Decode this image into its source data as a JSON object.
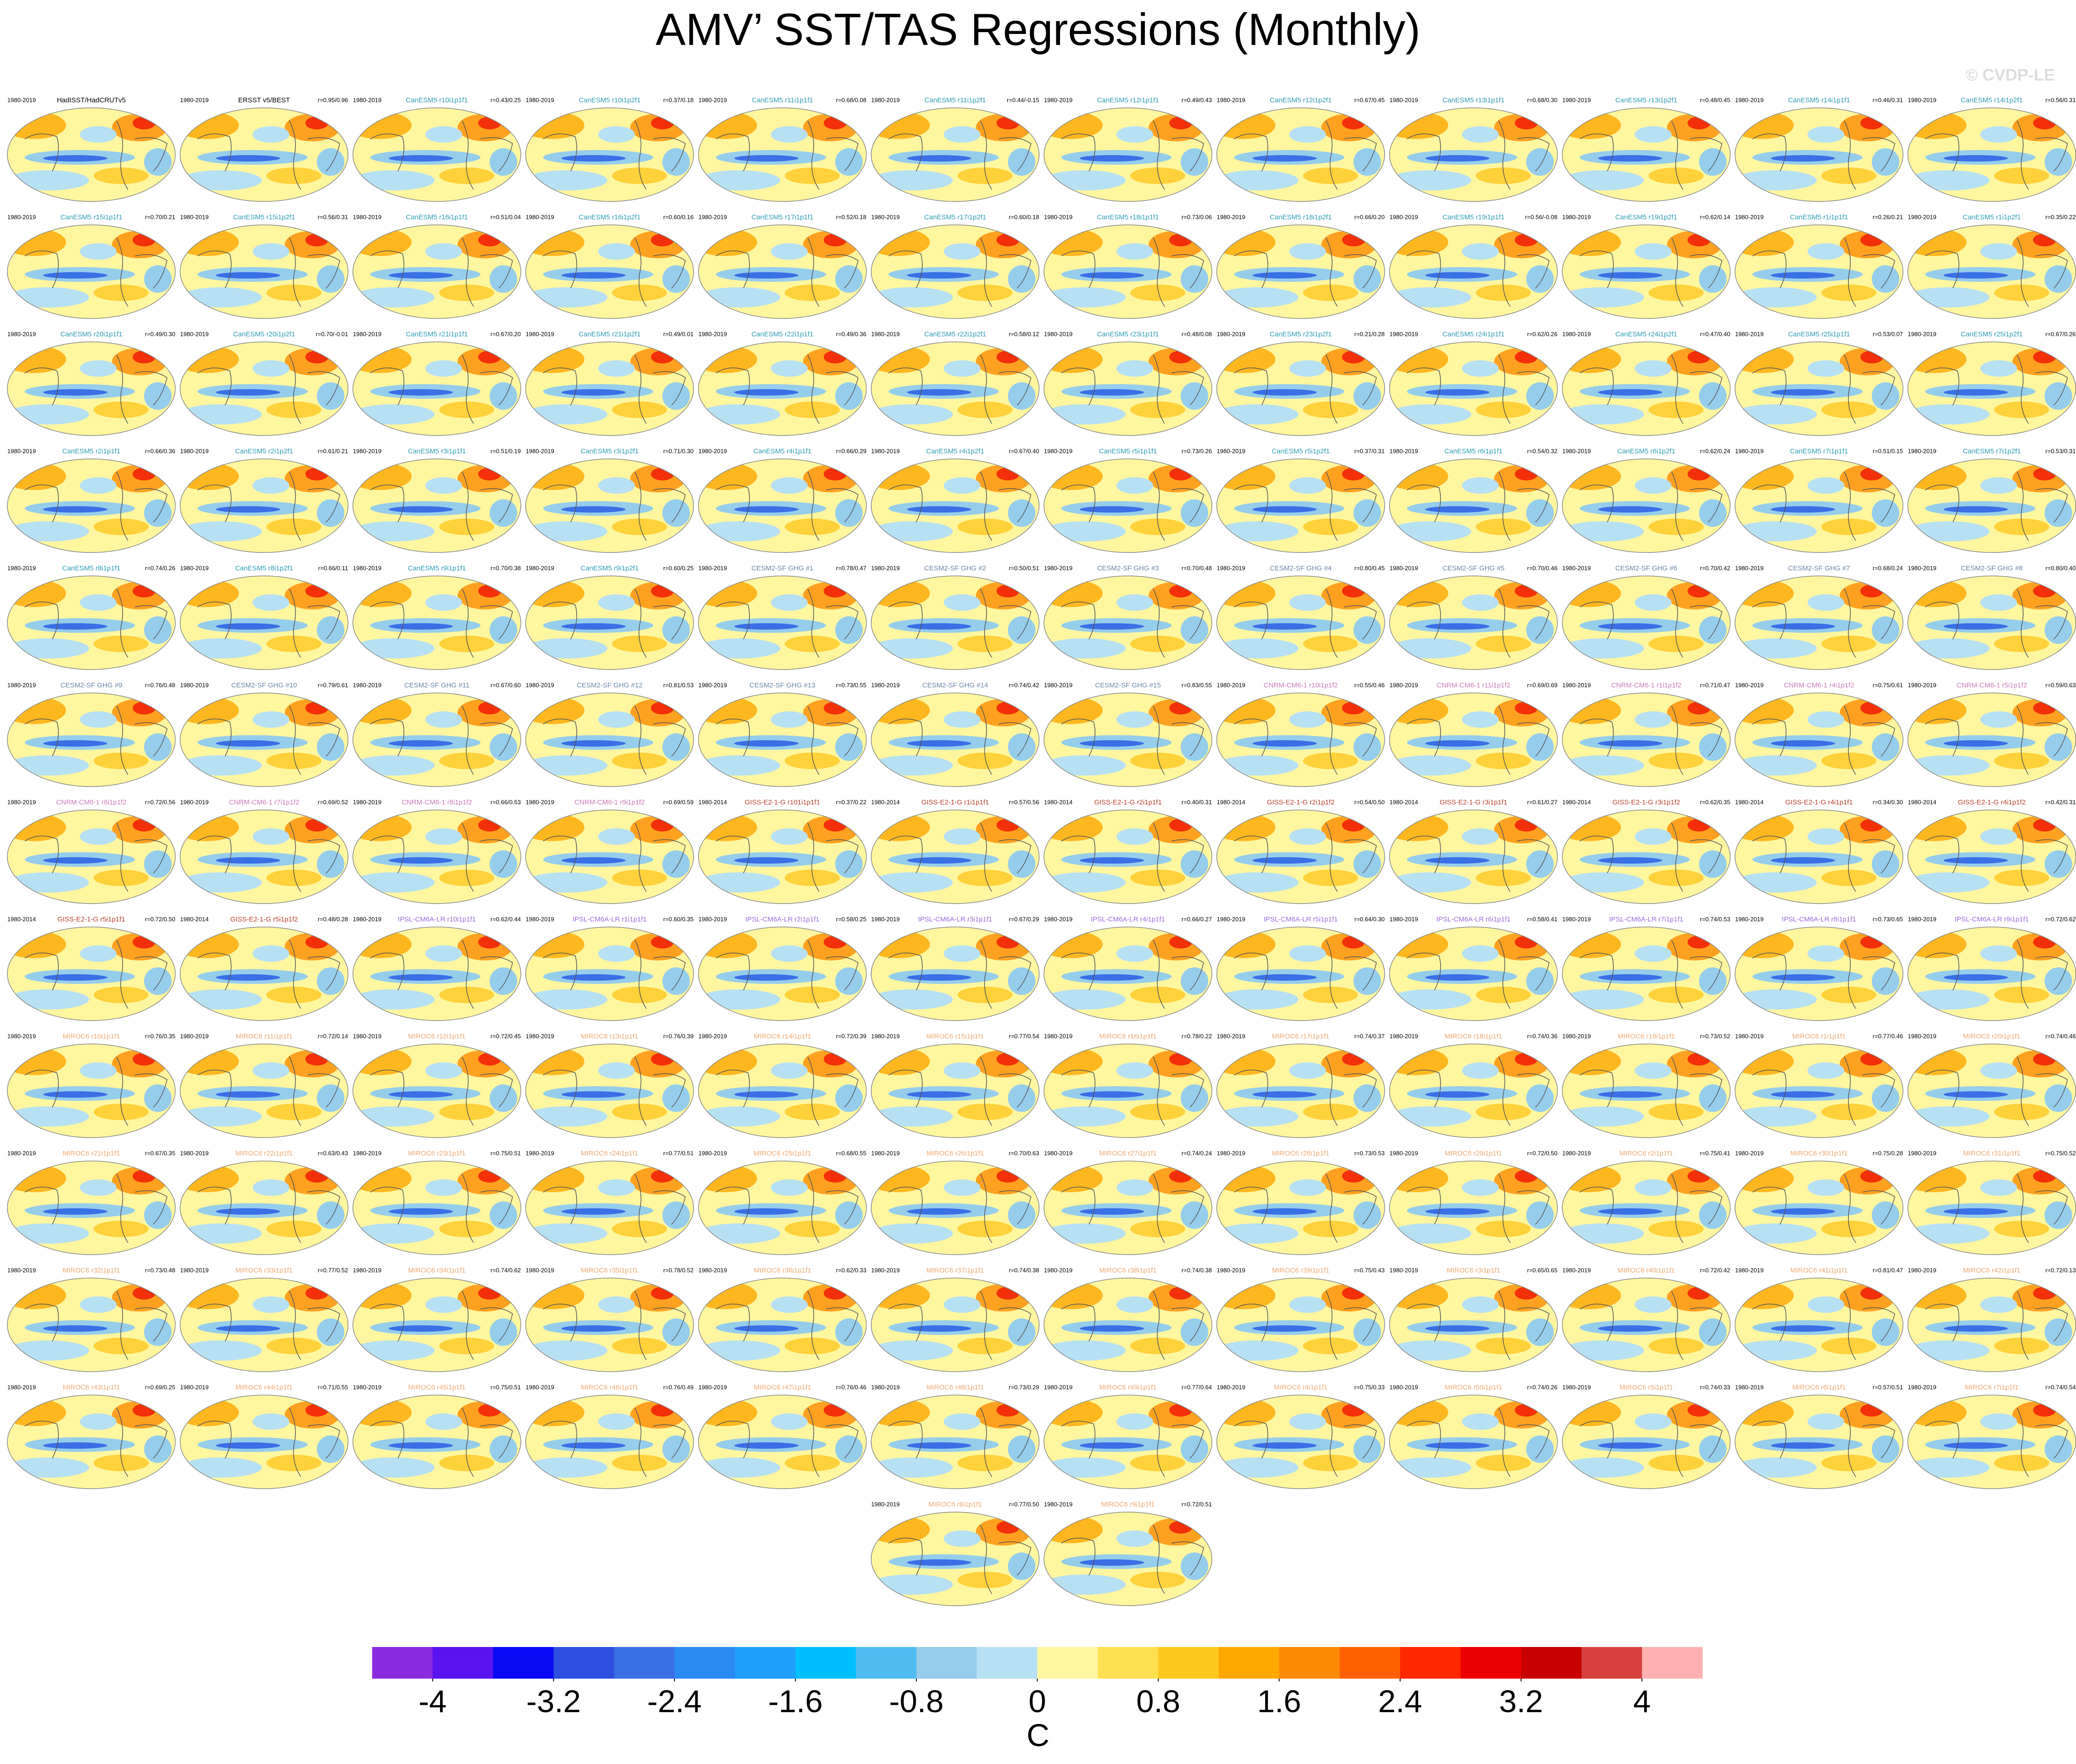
{
  "title": "AMV’ SST/TAS Regressions (Monthly)",
  "credit": "© CVDP-LE",
  "panels": [
    {
      "years": "1980-2019",
      "title": "HadISST/HadCRUTv5",
      "color": "#000000"
    },
    {
      "years": "1980-2019",
      "title": "ERSST v5/BEST",
      "r": "r=0.95/0.96",
      "color": "#000000"
    },
    {
      "years": "1980-2019",
      "title": "CanESM5 r10i1p1f1",
      "r": "r=0.43/0.25",
      "color": "#2b9cb3"
    },
    {
      "years": "1980-2019",
      "title": "CanESM5 r10i1p2f1",
      "r": "r=0.37/0.18",
      "color": "#2b9cb3"
    },
    {
      "years": "1980-2019",
      "title": "CanESM5 r11i1p1f1",
      "r": "r=0.68/0.08",
      "color": "#2b9cb3"
    },
    {
      "years": "1980-2019",
      "title": "CanESM5 r11i1p2f1",
      "r": "r=0.44/-0.15",
      "color": "#2b9cb3"
    },
    {
      "years": "1980-2019",
      "title": "CanESM5 r12i1p1f1",
      "r": "r=0.49/0.43",
      "color": "#2b9cb3"
    },
    {
      "years": "1980-2019",
      "title": "CanESM5 r12i1p2f1",
      "r": "r=0.67/0.45",
      "color": "#2b9cb3"
    },
    {
      "years": "1980-2019",
      "title": "CanESM5 r13i1p1f1",
      "r": "r=0.68/0.30",
      "color": "#2b9cb3"
    },
    {
      "years": "1980-2019",
      "title": "CanESM5 r13i1p2f1",
      "r": "r=0.48/0.45",
      "color": "#2b9cb3"
    },
    {
      "years": "1980-2019",
      "title": "CanESM5 r14i1p1f1",
      "r": "r=0.46/0.31",
      "color": "#2b9cb3"
    },
    {
      "years": "1980-2019",
      "title": "CanESM5 r14i1p2f1",
      "r": "r=0.56/0.31",
      "color": "#2b9cb3"
    },
    {
      "years": "1980-2019",
      "title": "CanESM5 r15i1p1f1",
      "r": "r=0.70/0.21",
      "color": "#2b9cb3"
    },
    {
      "years": "1980-2019",
      "title": "CanESM5 r15i1p2f1",
      "r": "r=0.56/0.31",
      "color": "#2b9cb3"
    },
    {
      "years": "1980-2019",
      "title": "CanESM5 r16i1p1f1",
      "r": "r=0.51/0.04",
      "color": "#2b9cb3"
    },
    {
      "years": "1980-2019",
      "title": "CanESM5 r16i1p2f1",
      "r": "r=0.60/0.16",
      "color": "#2b9cb3"
    },
    {
      "years": "1980-2019",
      "title": "CanESM5 r17i1p1f1",
      "r": "r=0.52/0.18",
      "color": "#2b9cb3"
    },
    {
      "years": "1980-2019",
      "title": "CanESM5 r17i1p2f1",
      "r": "r=0.60/0.18",
      "color": "#2b9cb3"
    },
    {
      "years": "1980-2019",
      "title": "CanESM5 r18i1p1f1",
      "r": "r=0.73/0.06",
      "color": "#2b9cb3"
    },
    {
      "years": "1980-2019",
      "title": "CanESM5 r18i1p2f1",
      "r": "r=0.66/0.20",
      "color": "#2b9cb3"
    },
    {
      "years": "1980-2019",
      "title": "CanESM5 r19i1p1f1",
      "r": "r=0.56/-0.08",
      "color": "#2b9cb3"
    },
    {
      "years": "1980-2019",
      "title": "CanESM5 r19i1p2f1",
      "r": "r=0.62/0.14",
      "color": "#2b9cb3"
    },
    {
      "years": "1980-2019",
      "title": "CanESM5 r1i1p1f1",
      "r": "r=0.26/0.21",
      "color": "#2b9cb3"
    },
    {
      "years": "1980-2019",
      "title": "CanESM5 r1i1p2f1",
      "r": "r=0.35/0.22",
      "color": "#2b9cb3"
    },
    {
      "years": "1980-2019",
      "title": "CanESM5 r20i1p1f1",
      "r": "r=0.49/0.30",
      "color": "#2b9cb3"
    },
    {
      "years": "1980-2019",
      "title": "CanESM5 r20i1p2f1",
      "r": "r=0.70/-0.01",
      "color": "#2b9cb3"
    },
    {
      "years": "1980-2019",
      "title": "CanESM5 r21i1p1f1",
      "r": "r=0.67/0.20",
      "color": "#2b9cb3"
    },
    {
      "years": "1980-2019",
      "title": "CanESM5 r21i1p2f1",
      "r": "r=0.49/0.01",
      "color": "#2b9cb3"
    },
    {
      "years": "1980-2019",
      "title": "CanESM5 r22i1p1f1",
      "r": "r=0.49/0.36",
      "color": "#2b9cb3"
    },
    {
      "years": "1980-2019",
      "title": "CanESM5 r22i1p2f1",
      "r": "r=0.58/0.12",
      "color": "#2b9cb3"
    },
    {
      "years": "1980-2019",
      "title": "CanESM5 r23i1p1f1",
      "r": "r=0.48/0.08",
      "color": "#2b9cb3"
    },
    {
      "years": "1980-2019",
      "title": "CanESM5 r23i1p2f1",
      "r": "r=0.21/0.28",
      "color": "#2b9cb3"
    },
    {
      "years": "1980-2019",
      "title": "CanESM5 r24i1p1f1",
      "r": "r=0.62/0.26",
      "color": "#2b9cb3"
    },
    {
      "years": "1980-2019",
      "title": "CanESM5 r24i1p2f1",
      "r": "r=0.47/0.40",
      "color": "#2b9cb3"
    },
    {
      "years": "1980-2019",
      "title": "CanESM5 r25i1p1f1",
      "r": "r=0.53/0.07",
      "color": "#2b9cb3"
    },
    {
      "years": "1980-2019",
      "title": "CanESM5 r25i1p2f1",
      "r": "r=0.67/0.26",
      "color": "#2b9cb3"
    },
    {
      "years": "1980-2019",
      "title": "CanESM5 r2i1p1f1",
      "r": "r=0.66/0.36",
      "color": "#2b9cb3"
    },
    {
      "years": "1980-2019",
      "title": "CanESM5 r2i1p2f1",
      "r": "r=0.61/0.21",
      "color": "#2b9cb3"
    },
    {
      "years": "1980-2019",
      "title": "CanESM5 r3i1p1f1",
      "r": "r=0.51/0.19",
      "color": "#2b9cb3"
    },
    {
      "years": "1980-2019",
      "title": "CanESM5 r3i1p2f1",
      "r": "r=0.71/0.30",
      "color": "#2b9cb3"
    },
    {
      "years": "1980-2019",
      "title": "CanESM5 r4i1p1f1",
      "r": "r=0.66/0.29",
      "color": "#2b9cb3"
    },
    {
      "years": "1980-2019",
      "title": "CanESM5 r4i1p2f1",
      "r": "r=0.67/0.40",
      "color": "#2b9cb3"
    },
    {
      "years": "1980-2019",
      "title": "CanESM5 r5i1p1f1",
      "r": "r=0.73/0.26",
      "color": "#2b9cb3"
    },
    {
      "years": "1980-2019",
      "title": "CanESM5 r5i1p2f1",
      "r": "r=0.37/0.31",
      "color": "#2b9cb3"
    },
    {
      "years": "1980-2019",
      "title": "CanESM5 r6i1p1f1",
      "r": "r=0.54/0.32",
      "color": "#2b9cb3"
    },
    {
      "years": "1980-2019",
      "title": "CanESM5 r6i1p2f1",
      "r": "r=0.62/0.24",
      "color": "#2b9cb3"
    },
    {
      "years": "1980-2019",
      "title": "CanESM5 r7i1p1f1",
      "r": "r=0.51/0.15",
      "color": "#2b9cb3"
    },
    {
      "years": "1980-2019",
      "title": "CanESM5 r7i1p2f1",
      "r": "r=0.53/0.31",
      "color": "#2b9cb3"
    },
    {
      "years": "1980-2019",
      "title": "CanESM5 r8i1p1f1",
      "r": "r=0.74/0.26",
      "color": "#2b9cb3"
    },
    {
      "years": "1980-2019",
      "title": "CanESM5 r8i1p2f1",
      "r": "r=0.66/0.11",
      "color": "#2b9cb3"
    },
    {
      "years": "1980-2019",
      "title": "CanESM5 r9i1p1f1",
      "r": "r=0.70/0.38",
      "color": "#2b9cb3"
    },
    {
      "years": "1980-2019",
      "title": "CanESM5 r9i1p2f1",
      "r": "r=0.60/0.25",
      "color": "#2b9cb3"
    },
    {
      "years": "1980-2019",
      "title": "CESM2-SF GHG #1",
      "r": "r=0.78/0.47",
      "color": "#6a86a6"
    },
    {
      "years": "1980-2019",
      "title": "CESM2-SF GHG #2",
      "r": "r=0.50/0.51",
      "color": "#6a86a6"
    },
    {
      "years": "1980-2019",
      "title": "CESM2-SF GHG #3",
      "r": "r=0.70/0.48",
      "color": "#6a86a6"
    },
    {
      "years": "1980-2019",
      "title": "CESM2-SF GHG #4",
      "r": "r=0.80/0.45",
      "color": "#6a86a6"
    },
    {
      "years": "1980-2019",
      "title": "CESM2-SF GHG #5",
      "r": "r=0.70/0.46",
      "color": "#6a86a6"
    },
    {
      "years": "1980-2019",
      "title": "CESM2-SF GHG #6",
      "r": "r=0.70/0.42",
      "color": "#6a86a6"
    },
    {
      "years": "1980-2019",
      "title": "CESM2-SF GHG #7",
      "r": "r=0.68/0.24",
      "color": "#6a86a6"
    },
    {
      "years": "1980-2019",
      "title": "CESM2-SF GHG #8",
      "r": "r=0.80/0.40",
      "color": "#6a86a6"
    },
    {
      "years": "1980-2019",
      "title": "CESM2-SF GHG #9",
      "r": "r=0.76/0.48",
      "color": "#6a86a6"
    },
    {
      "years": "1980-2019",
      "title": "CESM2-SF GHG #10",
      "r": "r=0.79/0.61",
      "color": "#6a86a6"
    },
    {
      "years": "1980-2019",
      "title": "CESM2-SF GHG #11",
      "r": "r=0.67/0.60",
      "color": "#6a86a6"
    },
    {
      "years": "1980-2019",
      "title": "CESM2-SF GHG #12",
      "r": "r=0.81/0.53",
      "color": "#6a86a6"
    },
    {
      "years": "1980-2019",
      "title": "CESM2-SF GHG #13",
      "r": "r=0.73/0.55",
      "color": "#6a86a6"
    },
    {
      "years": "1980-2019",
      "title": "CESM2-SF GHG #14",
      "r": "r=0.74/0.42",
      "color": "#6a86a6"
    },
    {
      "years": "1980-2019",
      "title": "CESM2-SF GHG #15",
      "r": "r=0.83/0.55",
      "color": "#6a86a6"
    },
    {
      "years": "1980-2019",
      "title": "CNRM-CM6-1 r10i1p1f2",
      "r": "r=0.55/0.46",
      "color": "#c97ab8"
    },
    {
      "years": "1980-2019",
      "title": "CNRM-CM6-1 r11i1p1f2",
      "r": "r=0.69/0.69",
      "color": "#c97ab8"
    },
    {
      "years": "1980-2019",
      "title": "CNRM-CM6-1 r1i1p1f2",
      "r": "r=0.71/0.47",
      "color": "#c97ab8"
    },
    {
      "years": "1980-2019",
      "title": "CNRM-CM6-1 r4i1p1f2",
      "r": "r=0.75/0.61",
      "color": "#c97ab8"
    },
    {
      "years": "1980-2019",
      "title": "CNRM-CM6-1 r5i1p1f2",
      "r": "r=0.59/0.63",
      "color": "#c97ab8"
    },
    {
      "years": "1980-2019",
      "title": "CNRM-CM6-1 r6i1p1f2",
      "r": "r=0.72/0.56",
      "color": "#c97ab8"
    },
    {
      "years": "1980-2019",
      "title": "CNRM-CM6-1 r7i1p1f2",
      "r": "r=0.69/0.52",
      "color": "#c97ab8"
    },
    {
      "years": "1980-2019",
      "title": "CNRM-CM6-1 r8i1p1f2",
      "r": "r=0.66/0.53",
      "color": "#c97ab8"
    },
    {
      "years": "1980-2019",
      "title": "CNRM-CM6-1 r9i1p1f2",
      "r": "r=0.69/0.59",
      "color": "#c97ab8"
    },
    {
      "years": "1980-2014",
      "title": "GISS-E2-1-G r101i1p1f1",
      "r": "r=0.37/0.22",
      "color": "#b5412f"
    },
    {
      "years": "1980-2014",
      "title": "GISS-E2-1-G r1i1p1f1",
      "r": "r=0.57/0.56",
      "color": "#b5412f"
    },
    {
      "years": "1980-2014",
      "title": "GISS-E2-1-G r2i1p1f1",
      "r": "r=0.40/0.31",
      "color": "#b5412f"
    },
    {
      "years": "1980-2014",
      "title": "GISS-E2-1-G r2i1p1f2",
      "r": "r=0.54/0.50",
      "color": "#b5412f"
    },
    {
      "years": "1980-2014",
      "title": "GISS-E2-1-G r3i1p1f1",
      "r": "r=0.61/0.27",
      "color": "#b5412f"
    },
    {
      "years": "1980-2014",
      "title": "GISS-E2-1-G r3i1p1f2",
      "r": "r=0.62/0.35",
      "color": "#b5412f"
    },
    {
      "years": "1980-2014",
      "title": "GISS-E2-1-G r4i1p1f1",
      "r": "r=0.34/0.30",
      "color": "#b5412f"
    },
    {
      "years": "1980-2014",
      "title": "GISS-E2-1-G r4i1p1f2",
      "r": "r=0.42/0.31",
      "color": "#b5412f"
    },
    {
      "years": "1980-2014",
      "title": "GISS-E2-1-G r5i1p1f1",
      "r": "r=0.72/0.50",
      "color": "#b5412f"
    },
    {
      "years": "1980-2014",
      "title": "GISS-E2-1-G r5i1p1f2",
      "r": "r=0.48/0.28",
      "color": "#b5412f"
    },
    {
      "years": "1980-2019",
      "title": "IPSL-CM6A-LR r10i1p1f1",
      "r": "r=0.62/0.44",
      "color": "#9b6bd6"
    },
    {
      "years": "1980-2019",
      "title": "IPSL-CM6A-LR r1i1p1f1",
      "r": "r=0.60/0.35",
      "color": "#9b6bd6"
    },
    {
      "years": "1980-2019",
      "title": "IPSL-CM6A-LR r2i1p1f1",
      "r": "r=0.58/0.25",
      "color": "#9b6bd6"
    },
    {
      "years": "1980-2019",
      "title": "IPSL-CM6A-LR r3i1p1f1",
      "r": "r=0.67/0.29",
      "color": "#9b6bd6"
    },
    {
      "years": "1980-2019",
      "title": "IPSL-CM6A-LR r4i1p1f1",
      "r": "r=0.66/0.27",
      "color": "#9b6bd6"
    },
    {
      "years": "1980-2019",
      "title": "IPSL-CM6A-LR r5i1p1f1",
      "r": "r=0.64/0.30",
      "color": "#9b6bd6"
    },
    {
      "years": "1980-2019",
      "title": "IPSL-CM6A-LR r6i1p1f1",
      "r": "r=0.58/0.41",
      "color": "#9b6bd6"
    },
    {
      "years": "1980-2019",
      "title": "IPSL-CM6A-LR r7i1p1f1",
      "r": "r=0.74/0.53",
      "color": "#9b6bd6"
    },
    {
      "years": "1980-2019",
      "title": "IPSL-CM6A-LR r8i1p1f1",
      "r": "r=0.73/0.65",
      "color": "#9b6bd6"
    },
    {
      "years": "1980-2019",
      "title": "IPSL-CM6A-LR r9i1p1f1",
      "r": "r=0.72/0.62",
      "color": "#9b6bd6"
    },
    {
      "years": "1980-2019",
      "title": "MIROC6 r10i1p1f1",
      "r": "r=0.76/0.35",
      "color": "#eea870"
    },
    {
      "years": "1980-2019",
      "title": "MIROC6 r11i1p1f1",
      "r": "r=0.72/0.14",
      "color": "#eea870"
    },
    {
      "years": "1980-2019",
      "title": "MIROC6 r12i1p1f1",
      "r": "r=0.72/0.45",
      "color": "#eea870"
    },
    {
      "years": "1980-2019",
      "title": "MIROC6 r13i1p1f1",
      "r": "r=0.76/0.39",
      "color": "#eea870"
    },
    {
      "years": "1980-2019",
      "title": "MIROC6 r14i1p1f1",
      "r": "r=0.72/0.39",
      "color": "#eea870"
    },
    {
      "years": "1980-2019",
      "title": "MIROC6 r15i1p1f1",
      "r": "r=0.77/0.54",
      "color": "#eea870"
    },
    {
      "years": "1980-2019",
      "title": "MIROC6 r16i1p1f1",
      "r": "r=0.78/0.22",
      "color": "#eea870"
    },
    {
      "years": "1980-2019",
      "title": "MIROC6 r17i1p1f1",
      "r": "r=0.74/0.37",
      "color": "#eea870"
    },
    {
      "years": "1980-2019",
      "title": "MIROC6 r18i1p1f1",
      "r": "r=0.74/0.36",
      "color": "#eea870"
    },
    {
      "years": "1980-2019",
      "title": "MIROC6 r19i1p1f1",
      "r": "r=0.73/0.52",
      "color": "#eea870"
    },
    {
      "years": "1980-2019",
      "title": "MIROC6 r1i1p1f1",
      "r": "r=0.77/0.46",
      "color": "#eea870"
    },
    {
      "years": "1980-2019",
      "title": "MIROC6 r20i1p1f1",
      "r": "r=0.74/0.46",
      "color": "#eea870"
    },
    {
      "years": "1980-2019",
      "title": "MIROC6 r21i1p1f1",
      "r": "r=0.67/0.35",
      "color": "#eea870"
    },
    {
      "years": "1980-2019",
      "title": "MIROC6 r22i1p1f1",
      "r": "r=0.63/0.43",
      "color": "#eea870"
    },
    {
      "years": "1980-2019",
      "title": "MIROC6 r23i1p1f1",
      "r": "r=0.75/0.51",
      "color": "#eea870"
    },
    {
      "years": "1980-2019",
      "title": "MIROC6 r24i1p1f1",
      "r": "r=0.77/0.51",
      "color": "#eea870"
    },
    {
      "years": "1980-2019",
      "title": "MIROC6 r25i1p1f1",
      "r": "r=0.68/0.55",
      "color": "#eea870"
    },
    {
      "years": "1980-2019",
      "title": "MIROC6 r26i1p1f1",
      "r": "r=0.70/0.63",
      "color": "#eea870"
    },
    {
      "years": "1980-2019",
      "title": "MIROC6 r27i1p1f1",
      "r": "r=0.74/0.24",
      "color": "#eea870"
    },
    {
      "years": "1980-2019",
      "title": "MIROC6 r28i1p1f1",
      "r": "r=0.73/0.53",
      "color": "#eea870"
    },
    {
      "years": "1980-2019",
      "title": "MIROC6 r29i1p1f1",
      "r": "r=0.72/0.50",
      "color": "#eea870"
    },
    {
      "years": "1980-2019",
      "title": "MIROC6 r2i1p1f1",
      "r": "r=0.75/0.41",
      "color": "#eea870"
    },
    {
      "years": "1980-2019",
      "title": "MIROC6 r30i1p1f1",
      "r": "r=0.75/0.28",
      "color": "#eea870"
    },
    {
      "years": "1980-2019",
      "title": "MIROC6 r31i1p1f1",
      "r": "r=0.75/0.52",
      "color": "#eea870"
    },
    {
      "years": "1980-2019",
      "title": "MIROC6 r32i1p1f1",
      "r": "r=0.73/0.48",
      "color": "#eea870"
    },
    {
      "years": "1980-2019",
      "title": "MIROC6 r33i1p1f1",
      "r": "r=0.77/0.52",
      "color": "#eea870"
    },
    {
      "years": "1980-2019",
      "title": "MIROC6 r34i1p1f1",
      "r": "r=0.74/0.62",
      "color": "#eea870"
    },
    {
      "years": "1980-2019",
      "title": "MIROC6 r35i1p1f1",
      "r": "r=0.78/0.52",
      "color": "#eea870"
    },
    {
      "years": "1980-2019",
      "title": "MIROC6 r36i1p1f1",
      "r": "r=0.62/0.33",
      "color": "#eea870"
    },
    {
      "years": "1980-2019",
      "title": "MIROC6 r37i1p1f1",
      "r": "r=0.74/0.38",
      "color": "#eea870"
    },
    {
      "years": "1980-2019",
      "title": "MIROC6 r38i1p1f1",
      "r": "r=0.74/0.38",
      "color": "#eea870"
    },
    {
      "years": "1980-2019",
      "title": "MIROC6 r39i1p1f1",
      "r": "r=0.75/0.43",
      "color": "#eea870"
    },
    {
      "years": "1980-2019",
      "title": "MIROC6 r3i1p1f1",
      "r": "r=0.65/0.65",
      "color": "#eea870"
    },
    {
      "years": "1980-2019",
      "title": "MIROC6 r40i1p1f1",
      "r": "r=0.72/0.42",
      "color": "#eea870"
    },
    {
      "years": "1980-2019",
      "title": "MIROC6 r41i1p1f1",
      "r": "r=0.81/0.47",
      "color": "#eea870"
    },
    {
      "years": "1980-2019",
      "title": "MIROC6 r42i1p1f1",
      "r": "r=0.72/0.13",
      "color": "#eea870"
    },
    {
      "years": "1980-2019",
      "title": "MIROC6 r43i1p1f1",
      "r": "r=0.69/0.25",
      "color": "#eea870"
    },
    {
      "years": "1980-2019",
      "title": "MIROC6 r44i1p1f1",
      "r": "r=0.71/0.55",
      "color": "#eea870"
    },
    {
      "years": "1980-2019",
      "title": "MIROC6 r45i1p1f1",
      "r": "r=0.75/0.51",
      "color": "#eea870"
    },
    {
      "years": "1980-2019",
      "title": "MIROC6 r46i1p1f1",
      "r": "r=0.76/0.49",
      "color": "#eea870"
    },
    {
      "years": "1980-2019",
      "title": "MIROC6 r47i1p1f1",
      "r": "r=0.76/0.46",
      "color": "#eea870"
    },
    {
      "years": "1980-2019",
      "title": "MIROC6 r48i1p1f1",
      "r": "r=0.73/0.29",
      "color": "#eea870"
    },
    {
      "years": "1980-2019",
      "title": "MIROC6 r49i1p1f1",
      "r": "r=0.77/0.64",
      "color": "#eea870"
    },
    {
      "years": "1980-2019",
      "title": "MIROC6 r4i1p1f1",
      "r": "r=0.75/0.33",
      "color": "#eea870"
    },
    {
      "years": "1980-2019",
      "title": "MIROC6 r50i1p1f1",
      "r": "r=0.74/0.26",
      "color": "#eea870"
    },
    {
      "years": "1980-2019",
      "title": "MIROC6 r5i1p1f1",
      "r": "r=0.74/0.33",
      "color": "#eea870"
    },
    {
      "years": "1980-2019",
      "title": "MIROC6 r6i1p1f1",
      "r": "r=0.57/0.51",
      "color": "#eea870"
    },
    {
      "years": "1980-2019",
      "title": "MIROC6 r7i1p1f1",
      "r": "r=0.74/0.54",
      "color": "#eea870"
    },
    {
      "years": "1980-2019",
      "title": "MIROC6 r8i1p1f1",
      "r": "r=0.77/0.50",
      "color": "#eea870"
    },
    {
      "years": "1980-2019",
      "title": "MIROC6 r9i1p1f1",
      "r": "r=0.72/0.51",
      "color": "#eea870"
    }
  ],
  "colorbar": {
    "clim": [
      -4.4,
      4.4
    ],
    "ticks": [
      -4,
      -3.2,
      -2.4,
      -1.6,
      -0.8,
      0,
      0.8,
      1.6,
      2.4,
      3.2,
      4
    ],
    "label": "C",
    "colors": [
      "#8a2be2",
      "#5a14f0",
      "#0a0af5",
      "#2e4fe0",
      "#3a6fe6",
      "#2a8af5",
      "#1fa0fa",
      "#00bfff",
      "#50bdf0",
      "#96cdeb",
      "#b8e0f3",
      "#fff6a0",
      "#ffe050",
      "#ffc820",
      "#ffa800",
      "#ff8c00",
      "#ff6000",
      "#ff2800",
      "#ee0000",
      "#c80000",
      "#d84040",
      "#ffb0b0"
    ]
  }
}
